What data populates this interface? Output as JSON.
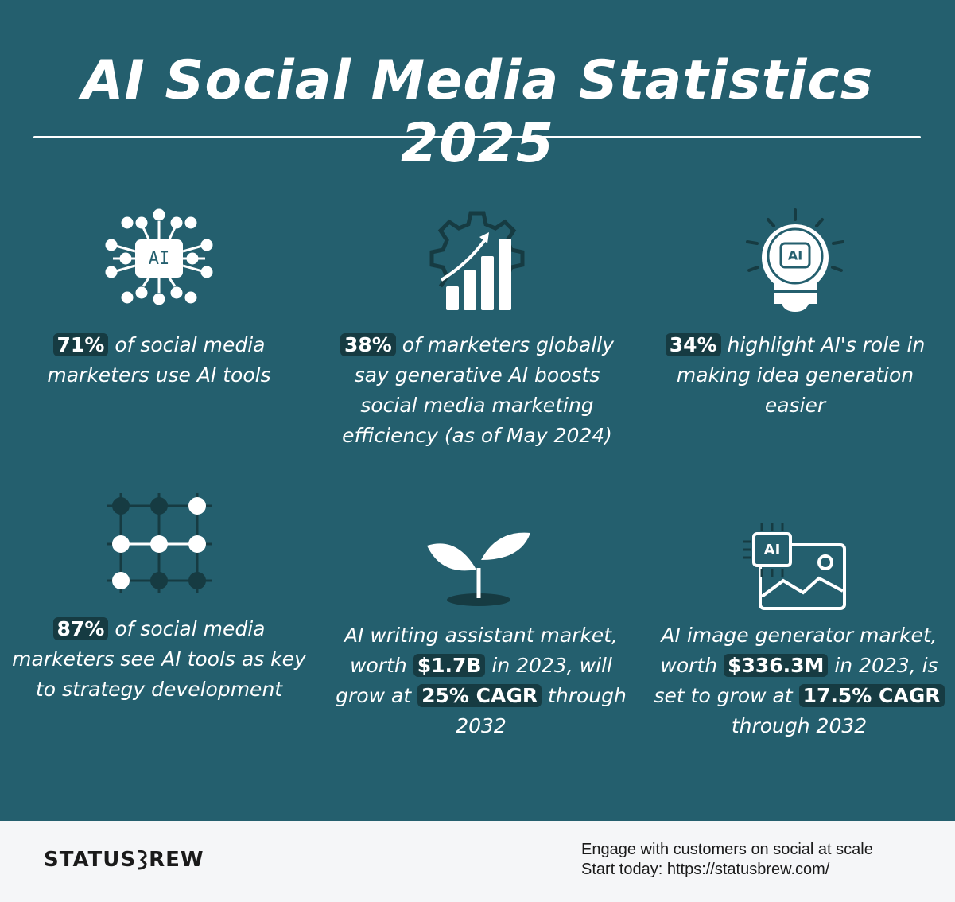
{
  "title": "AI Social Media Statistics 2025",
  "items": [
    {
      "icon_label": "AI",
      "segments": [
        {
          "text": "71%",
          "highlight": true
        },
        {
          "text": " of social media marketers use AI tools"
        }
      ]
    },
    {
      "segments": [
        {
          "text": "38%",
          "highlight": true
        },
        {
          "text": " of marketers globally say generative AI boosts social media marketing efficiency (as of May 2024)"
        }
      ]
    },
    {
      "icon_label": "AI",
      "segments": [
        {
          "text": "34%",
          "highlight": true
        },
        {
          "text": " highlight AI's role in making idea generation easier"
        }
      ]
    },
    {
      "segments": [
        {
          "text": "87%",
          "highlight": true
        },
        {
          "text": " of social media marketers see AI tools as key to strategy development"
        }
      ]
    },
    {
      "segments": [
        {
          "text": "AI writing assistant market, worth "
        },
        {
          "text": "$1.7B",
          "highlight": true
        },
        {
          "text": " in 2023, will grow at "
        },
        {
          "text": "25% CAGR",
          "highlight": true
        },
        {
          "text": " through 2032"
        }
      ]
    },
    {
      "icon_label": "AI",
      "segments": [
        {
          "text": "AI image generator market, worth "
        },
        {
          "text": "$336.3M",
          "highlight": true
        },
        {
          "text": " in 2023, is set to grow at "
        },
        {
          "text": "17.5% CAGR",
          "highlight": true
        },
        {
          "text": " through 2032"
        }
      ]
    }
  ],
  "footer": {
    "brand_left": "STATUS",
    "brand_right": "REW",
    "tagline": "Engage with customers on social at scale",
    "cta": "Start today: https://statusbrew.com/"
  }
}
